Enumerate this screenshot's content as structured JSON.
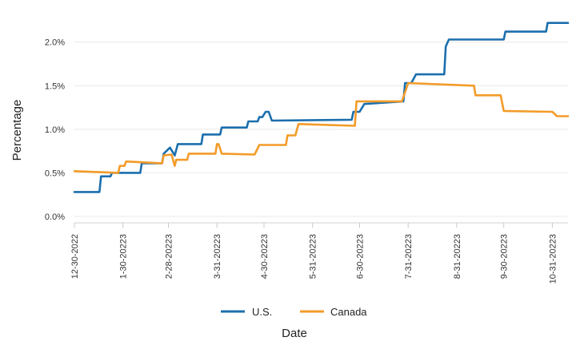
{
  "chart_data": {
    "type": "line",
    "xlabel": "Date",
    "ylabel": "Percentage",
    "x_range": [
      "2022-12-30",
      "2023-11-10"
    ],
    "ylim": [
      0.0,
      2.3
    ],
    "y_ticks": [
      0.0,
      0.5,
      1.0,
      1.5,
      2.0
    ],
    "y_tick_labels": [
      "0.0%",
      "0.5%",
      "1.0%",
      "1.5%",
      "2.0%"
    ],
    "x_ticks": [
      "2022-12-30",
      "2023-01-30",
      "2023-02-28",
      "2023-03-31",
      "2023-04-30",
      "2023-05-31",
      "2023-06-30",
      "2023-07-31",
      "2023-08-31",
      "2023-09-30",
      "2023-10-31"
    ],
    "x_tick_labels": [
      "12-30-2022",
      "1-30-20223",
      "2-28-20223",
      "3-31-20223",
      "4-30-20223",
      "5-31-20223",
      "6-30-20223",
      "7-31-20223",
      "8-31-20223",
      "9-30-20223",
      "10-31-20223"
    ],
    "grid": "horizontal",
    "legend_position": "bottom",
    "series": [
      {
        "name": "U.S.",
        "color": "#1b6fad",
        "points": [
          [
            "2022-12-30",
            0.28
          ],
          [
            "2023-01-15",
            0.28
          ],
          [
            "2023-01-16",
            0.46
          ],
          [
            "2023-01-22",
            0.46
          ],
          [
            "2023-01-23",
            0.5
          ],
          [
            "2023-02-10",
            0.5
          ],
          [
            "2023-02-11",
            0.61
          ],
          [
            "2023-02-24",
            0.61
          ],
          [
            "2023-02-25",
            0.72
          ],
          [
            "2023-03-01",
            0.79
          ],
          [
            "2023-03-04",
            0.7
          ],
          [
            "2023-03-06",
            0.83
          ],
          [
            "2023-03-21",
            0.83
          ],
          [
            "2023-03-22",
            0.94
          ],
          [
            "2023-04-02",
            0.94
          ],
          [
            "2023-04-03",
            1.02
          ],
          [
            "2023-04-19",
            1.02
          ],
          [
            "2023-04-20",
            1.09
          ],
          [
            "2023-04-26",
            1.09
          ],
          [
            "2023-04-27",
            1.14
          ],
          [
            "2023-04-29",
            1.14
          ],
          [
            "2023-05-01",
            1.2
          ],
          [
            "2023-05-03",
            1.2
          ],
          [
            "2023-05-05",
            1.1
          ],
          [
            "2023-06-25",
            1.11
          ],
          [
            "2023-06-26",
            1.2
          ],
          [
            "2023-06-30",
            1.2
          ],
          [
            "2023-07-03",
            1.29
          ],
          [
            "2023-07-28",
            1.32
          ],
          [
            "2023-07-29",
            1.53
          ],
          [
            "2023-08-02",
            1.53
          ],
          [
            "2023-08-05",
            1.63
          ],
          [
            "2023-08-23",
            1.63
          ],
          [
            "2023-08-24",
            1.95
          ],
          [
            "2023-08-26",
            2.03
          ],
          [
            "2023-09-30",
            2.03
          ],
          [
            "2023-10-01",
            2.12
          ],
          [
            "2023-10-27",
            2.12
          ],
          [
            "2023-10-28",
            2.22
          ],
          [
            "2023-11-10",
            2.22
          ]
        ]
      },
      {
        "name": "Canada",
        "color": "#f39b28",
        "points": [
          [
            "2022-12-30",
            0.52
          ],
          [
            "2023-01-27",
            0.5
          ],
          [
            "2023-01-28",
            0.58
          ],
          [
            "2023-01-31",
            0.58
          ],
          [
            "2023-02-01",
            0.63
          ],
          [
            "2023-02-24",
            0.61
          ],
          [
            "2023-02-25",
            0.7
          ],
          [
            "2023-03-02",
            0.71
          ],
          [
            "2023-03-04",
            0.58
          ],
          [
            "2023-03-05",
            0.65
          ],
          [
            "2023-03-12",
            0.65
          ],
          [
            "2023-03-13",
            0.72
          ],
          [
            "2023-03-30",
            0.72
          ],
          [
            "2023-03-31",
            0.83
          ],
          [
            "2023-04-01",
            0.83
          ],
          [
            "2023-04-03",
            0.72
          ],
          [
            "2023-04-24",
            0.71
          ],
          [
            "2023-04-27",
            0.82
          ],
          [
            "2023-05-14",
            0.82
          ],
          [
            "2023-05-15",
            0.93
          ],
          [
            "2023-05-20",
            0.93
          ],
          [
            "2023-05-22",
            1.06
          ],
          [
            "2023-06-27",
            1.04
          ],
          [
            "2023-06-28",
            1.32
          ],
          [
            "2023-07-27",
            1.32
          ],
          [
            "2023-07-31",
            1.53
          ],
          [
            "2023-09-11",
            1.5
          ],
          [
            "2023-09-12",
            1.39
          ],
          [
            "2023-09-28",
            1.39
          ],
          [
            "2023-09-30",
            1.21
          ],
          [
            "2023-10-31",
            1.2
          ],
          [
            "2023-11-03",
            1.15
          ],
          [
            "2023-11-10",
            1.15
          ]
        ]
      }
    ]
  }
}
